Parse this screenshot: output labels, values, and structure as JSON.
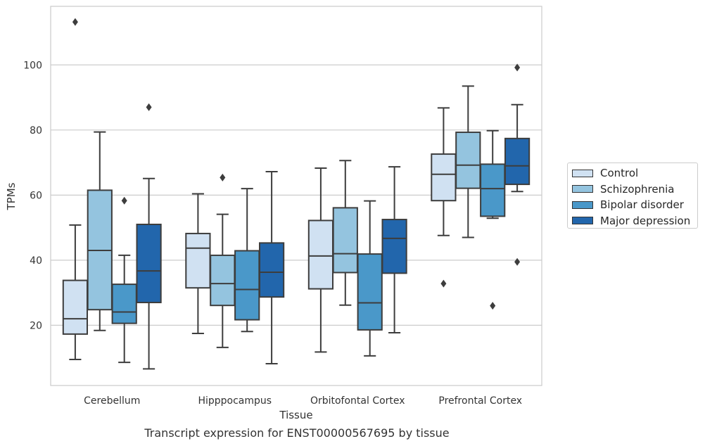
{
  "chart_data": {
    "type": "box",
    "title": "",
    "caption": "Transcript expression for ENST00000567695 by tissue",
    "xlabel": "Tissue",
    "ylabel": "TPMs",
    "ylim": [
      1.5,
      118
    ],
    "yticks": [
      20,
      40,
      60,
      80,
      100
    ],
    "grid": "horizontal",
    "legend_position": "right",
    "categories": [
      "Cerebellum",
      "Hipppocampus",
      "Orbitofontal Cortex",
      "Prefrontal Cortex"
    ],
    "series": [
      {
        "name": "Control",
        "color": "#d0e1f2",
        "boxes": [
          {
            "whisker_low": 9.5,
            "q1": 17.3,
            "median": 22.0,
            "q3": 33.8,
            "whisker_high": 50.8,
            "outliers": [
              113.2
            ]
          },
          {
            "whisker_low": 17.5,
            "q1": 31.5,
            "median": 43.7,
            "q3": 48.2,
            "whisker_high": 60.4,
            "outliers": []
          },
          {
            "whisker_low": 11.8,
            "q1": 31.2,
            "median": 41.3,
            "q3": 52.2,
            "whisker_high": 68.3,
            "outliers": []
          },
          {
            "whisker_low": 47.6,
            "q1": 58.3,
            "median": 66.4,
            "q3": 72.6,
            "whisker_high": 86.8,
            "outliers": [
              32.8
            ]
          }
        ]
      },
      {
        "name": "Schizophrenia",
        "color": "#94c4df",
        "boxes": [
          {
            "whisker_low": 18.4,
            "q1": 24.8,
            "median": 43.0,
            "q3": 61.5,
            "whisker_high": 79.4,
            "outliers": []
          },
          {
            "whisker_low": 13.2,
            "q1": 26.1,
            "median": 32.8,
            "q3": 41.5,
            "whisker_high": 54.1,
            "outliers": [
              65.4
            ]
          },
          {
            "whisker_low": 26.2,
            "q1": 36.2,
            "median": 42.0,
            "q3": 56.1,
            "whisker_high": 70.6,
            "outliers": []
          },
          {
            "whisker_low": 47.0,
            "q1": 62.1,
            "median": 69.2,
            "q3": 79.3,
            "whisker_high": 93.5,
            "outliers": []
          }
        ]
      },
      {
        "name": "Bipolar disorder",
        "color": "#4a98c9",
        "boxes": [
          {
            "whisker_low": 8.6,
            "q1": 20.6,
            "median": 24.1,
            "q3": 32.6,
            "whisker_high": 41.5,
            "outliers": [
              58.3
            ]
          },
          {
            "whisker_low": 18.1,
            "q1": 21.7,
            "median": 31.0,
            "q3": 42.9,
            "whisker_high": 62.0,
            "outliers": []
          },
          {
            "whisker_low": 10.6,
            "q1": 18.6,
            "median": 26.9,
            "q3": 41.9,
            "whisker_high": 58.2,
            "outliers": []
          },
          {
            "whisker_low": 52.9,
            "q1": 53.5,
            "median": 62.0,
            "q3": 69.5,
            "whisker_high": 79.8,
            "outliers": [
              26.0
            ]
          }
        ]
      },
      {
        "name": "Major depression",
        "color": "#2266ac",
        "boxes": [
          {
            "whisker_low": 6.6,
            "q1": 27.0,
            "median": 36.7,
            "q3": 51.0,
            "whisker_high": 65.1,
            "outliers": [
              87.0
            ]
          },
          {
            "whisker_low": 8.2,
            "q1": 28.7,
            "median": 36.3,
            "q3": 45.3,
            "whisker_high": 67.2,
            "outliers": []
          },
          {
            "whisker_low": 17.7,
            "q1": 36.0,
            "median": 46.7,
            "q3": 52.5,
            "whisker_high": 68.7,
            "outliers": []
          },
          {
            "whisker_low": 61.1,
            "q1": 63.3,
            "median": 69.0,
            "q3": 77.4,
            "whisker_high": 87.8,
            "outliers": [
              39.5,
              99.2
            ]
          }
        ]
      }
    ]
  }
}
